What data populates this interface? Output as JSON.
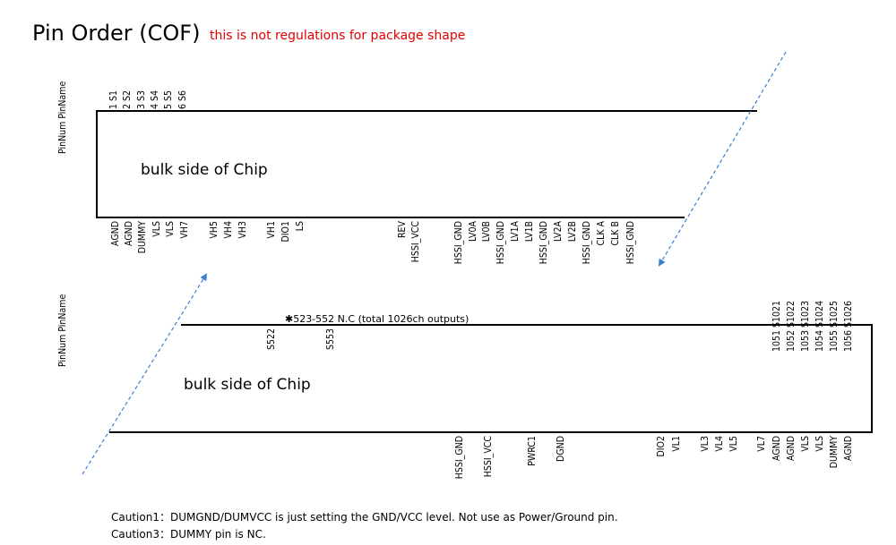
{
  "title": "Pin Order (COF)",
  "subtitle": "this is not regulations for package shape",
  "colors": {
    "subtitle": "#e00000",
    "arrow": "#3a7fd0",
    "line": "#000000"
  },
  "upper": {
    "axis_label": "PinNum PinName",
    "bulk_label": "bulk side of Chip",
    "top_pins": [
      "1 S1",
      "2 S2",
      "3 S3",
      "4 S4",
      "5 S5",
      "6 S6"
    ],
    "bottom_pins": [
      "AGND",
      "AGND",
      "DUMMY",
      "VLS",
      "VLS",
      "VH7",
      "VH5",
      "VH4",
      "VH3",
      "VH1",
      "DIO1",
      "LS",
      "REV",
      "HSSI_VCC",
      "HSSI_GND",
      "LV0A",
      "LV0B",
      "HSSI_GND",
      "LV1A",
      "LV1B",
      "HSSI_GND",
      "LV2A",
      "LV2B",
      "HSSI_GND",
      "CLK A",
      "CLK B",
      "HSSI_GND"
    ]
  },
  "lower": {
    "axis_label": "PinNum PinName",
    "bulk_label": "bulk side of Chip",
    "note": "✱523-552  N.C  (total 1026ch outputs)",
    "top_mid_pins": [
      "S522",
      "S553"
    ],
    "top_right_pins": [
      "1051 S1021",
      "1052 S1022",
      "1053 S1023",
      "1054 S1024",
      "1055 S1025",
      "1056 S1026"
    ],
    "bottom_pins": [
      "HSSI_GND",
      "HSSI_VCC",
      "PWRC1",
      "DGND",
      "DIO2",
      "VL1",
      "VL3",
      "VL4",
      "VL5",
      "VL7",
      "AGND",
      "AGND",
      "VLS",
      "VLS",
      "DUMMY",
      "AGND"
    ]
  },
  "cautions": [
    "Caution1：DUMGND/DUMVCC is just setting the GND/VCC level. Not use as Power/Ground pin.",
    "Caution3：DUMMY pin is NC."
  ]
}
